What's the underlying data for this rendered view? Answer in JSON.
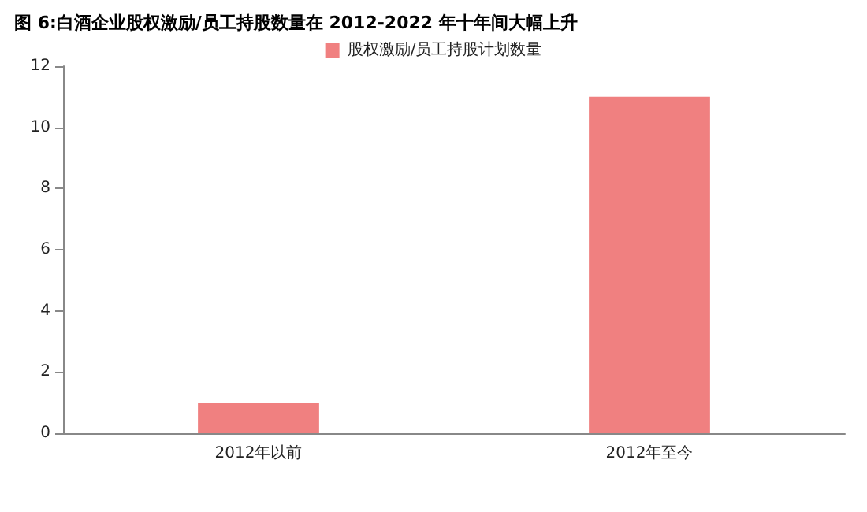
{
  "chart_data": {
    "type": "bar",
    "title": "图 6:白酒企业股权激励/员工持股数量在 2012-2022 年十年间大幅上升",
    "categories": [
      "2012年以前",
      "2012年至今"
    ],
    "series": [
      {
        "name": "股权激励/员工持股计划数量",
        "color": "#f08080",
        "values": [
          1,
          11
        ]
      }
    ],
    "ylim": [
      0,
      12
    ],
    "yticks": [
      0,
      2,
      4,
      6,
      8,
      10,
      12
    ],
    "grid": false,
    "legend": "top"
  }
}
